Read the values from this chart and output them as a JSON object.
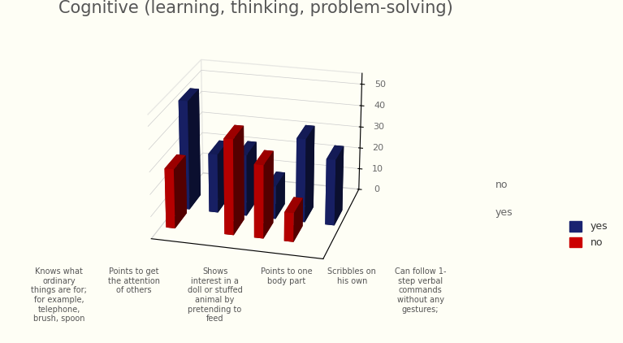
{
  "title": "Cognitive (learning, thinking, problem-solving)",
  "categories": [
    "Knows what\nordinary\nthings are for;\nfor example,\ntelephone,\nbrush, spoon",
    "Points to get\nthe attention\nof others",
    "Shows\ninterest in a\ndoll or stuffed\nanimal by\npretending to\nfeed",
    "Points to one\nbody part",
    "Scribbles on\nhis own",
    "Can follow 1-\nstep verbal\ncommands\nwithout any\ngestures;"
  ],
  "yes_values": [
    50,
    27,
    28,
    15,
    38,
    30
  ],
  "no_values": [
    27,
    0,
    43,
    33,
    13,
    0
  ],
  "yes_color": "#1a2370",
  "no_color": "#cc0000",
  "background_color": "#fefef5",
  "right_bg_color": "#fffde8",
  "ylim_max": 55,
  "yticks": [
    0,
    10,
    20,
    30,
    40,
    50
  ],
  "title_fontsize": 15,
  "label_fontsize": 7,
  "legend_fontsize": 9
}
